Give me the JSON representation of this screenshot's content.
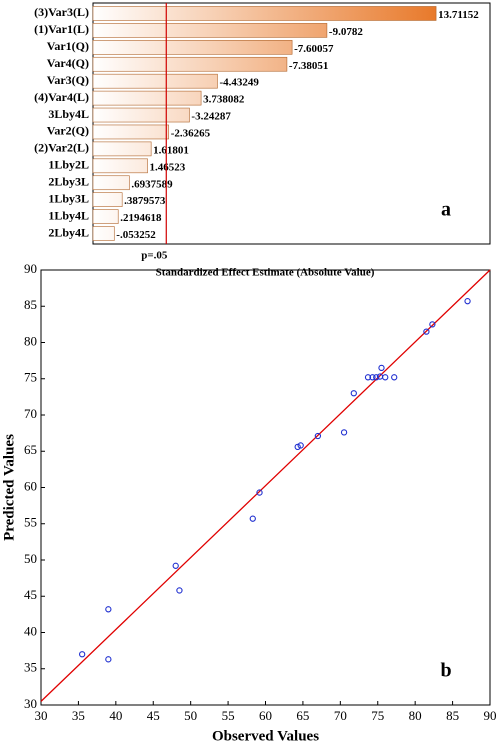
{
  "chart_data": [
    {
      "type": "bar",
      "orientation": "horizontal",
      "categories": [
        "(3)Var3(L)",
        "(1)Var1(L)",
        "Var1(Q)",
        "Var4(Q)",
        "Var3(Q)",
        "(4)Var4(L)",
        "3Lby4L",
        "Var2(Q)",
        "(2)Var2(L)",
        "1Lby2L",
        "2Lby3L",
        "1Lby3L",
        "1Lby4L",
        "2Lby4L"
      ],
      "values": [
        13.71152,
        9.0782,
        7.60057,
        7.38051,
        4.43249,
        3.738082,
        3.24287,
        2.36265,
        1.61801,
        1.46523,
        0.6937589,
        0.3879573,
        0.2194618,
        0.053252
      ],
      "value_labels": [
        "13.71152",
        "-9.0782",
        "-7.60057",
        "-7.38051",
        "-4.43249",
        "3.738082",
        "-3.24287",
        "-2.36265",
        "1.61801",
        "1.46523",
        ".6937589",
        ".3879573",
        ".2194618",
        "-.053252"
      ],
      "color": "#e8792a",
      "xlim": [
        -0.85,
        16
      ],
      "reference_line": {
        "value": 2.26,
        "label": "p=.05",
        "color": "#d00000"
      },
      "x_label": "Standardized Effect Estimate (Absolute Value)",
      "annotation": "a"
    },
    {
      "type": "scatter",
      "x": [
        35.5,
        39,
        39,
        48,
        48.5,
        58.3,
        59.2,
        64.3,
        64.7,
        67,
        70.5,
        71.8,
        73.7,
        74.3,
        74.8,
        75.3,
        75.5,
        76,
        77.2,
        81.5,
        82.3,
        87
      ],
      "y": [
        37,
        36.3,
        43.2,
        49.2,
        45.8,
        55.7,
        59.3,
        65.6,
        65.8,
        67.1,
        67.6,
        73,
        75.2,
        75.2,
        75.2,
        75.3,
        76.5,
        75.2,
        75.2,
        81.5,
        82.5,
        85.7
      ],
      "color": "#1f2fd0",
      "fit_line": {
        "x": [
          30,
          90
        ],
        "y": [
          30.5,
          90
        ],
        "color": "#e00000"
      },
      "xlim": [
        30,
        90
      ],
      "ylim": [
        30,
        90
      ],
      "xticks": [
        30,
        35,
        40,
        45,
        50,
        55,
        60,
        65,
        70,
        75,
        80,
        85,
        90
      ],
      "yticks": [
        30,
        35,
        40,
        45,
        50,
        55,
        60,
        65,
        70,
        75,
        80,
        85,
        90
      ],
      "x_label": "Observed Values",
      "y_label": "Predicted Values",
      "annotation": "b"
    }
  ]
}
